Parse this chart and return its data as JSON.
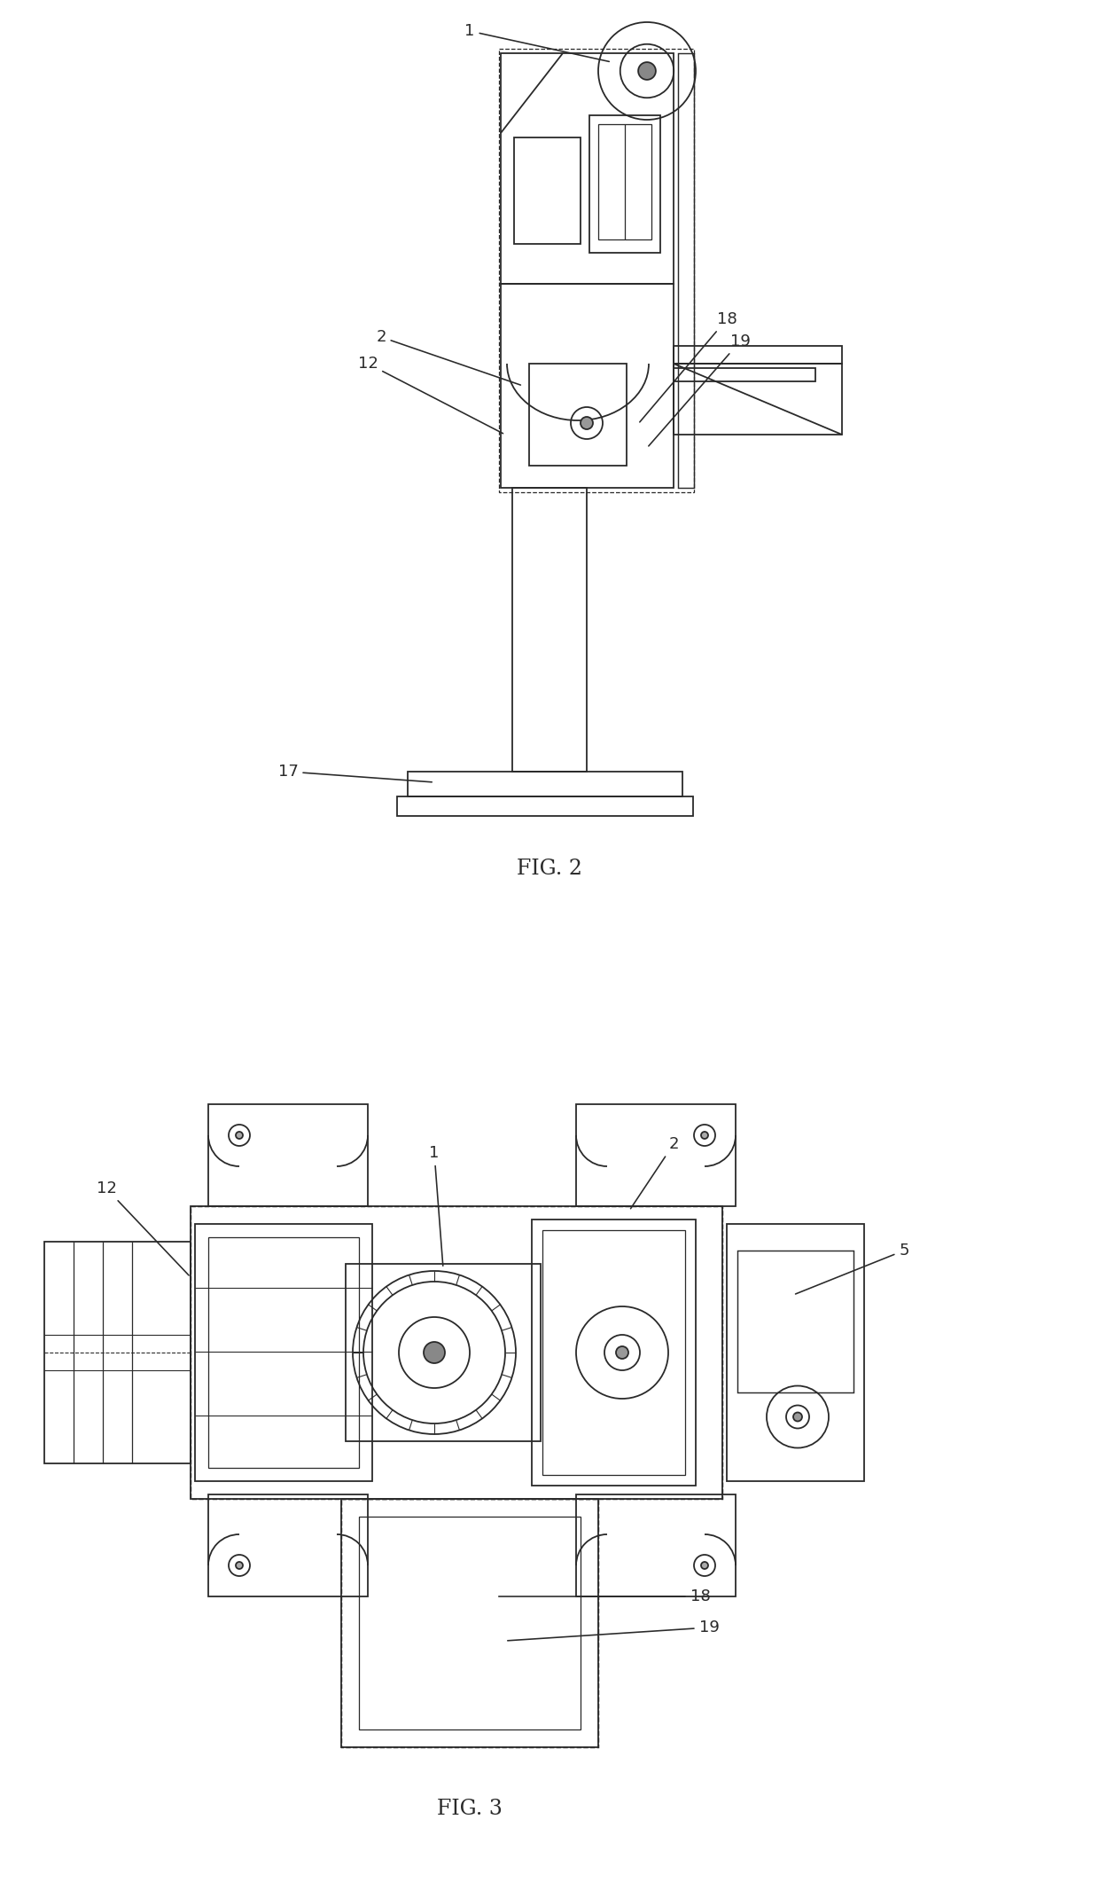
{
  "fig_width": 12.4,
  "fig_height": 21.4,
  "bg_color": "#ffffff",
  "line_color": "#2a2a2a",
  "line_width": 1.3,
  "fig2_label": "FIG. 2",
  "fig3_label": "FIG. 3"
}
